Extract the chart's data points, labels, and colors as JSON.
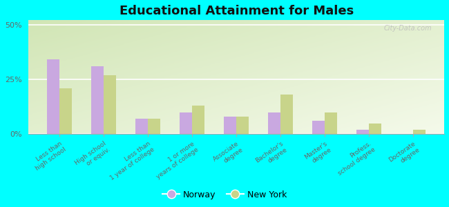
{
  "title": "Educational Attainment for Males",
  "categories": [
    "Less than\nhigh school",
    "High school\nor equiv.",
    "Less than\n1 year of college",
    "1 or more\nyears of college",
    "Associate\ndegree",
    "Bachelor's\ndegree",
    "Master's\ndegree",
    "Profess.\nschool degree",
    "Doctorate\ndegree"
  ],
  "norway": [
    34,
    31,
    7,
    10,
    8,
    10,
    6,
    2,
    0
  ],
  "new_york": [
    21,
    27,
    7,
    13,
    8,
    18,
    10,
    5,
    2
  ],
  "norway_color": "#c9a8e0",
  "new_york_color": "#c8d48a",
  "background_outer": "#00ffff",
  "ylim": [
    0,
    52
  ],
  "yticks": [
    0,
    25,
    50
  ],
  "ytick_labels": [
    "0%",
    "25%",
    "50%"
  ],
  "bar_width": 0.28,
  "legend_labels": [
    "Norway",
    "New York"
  ],
  "watermark": "City-Data.com"
}
